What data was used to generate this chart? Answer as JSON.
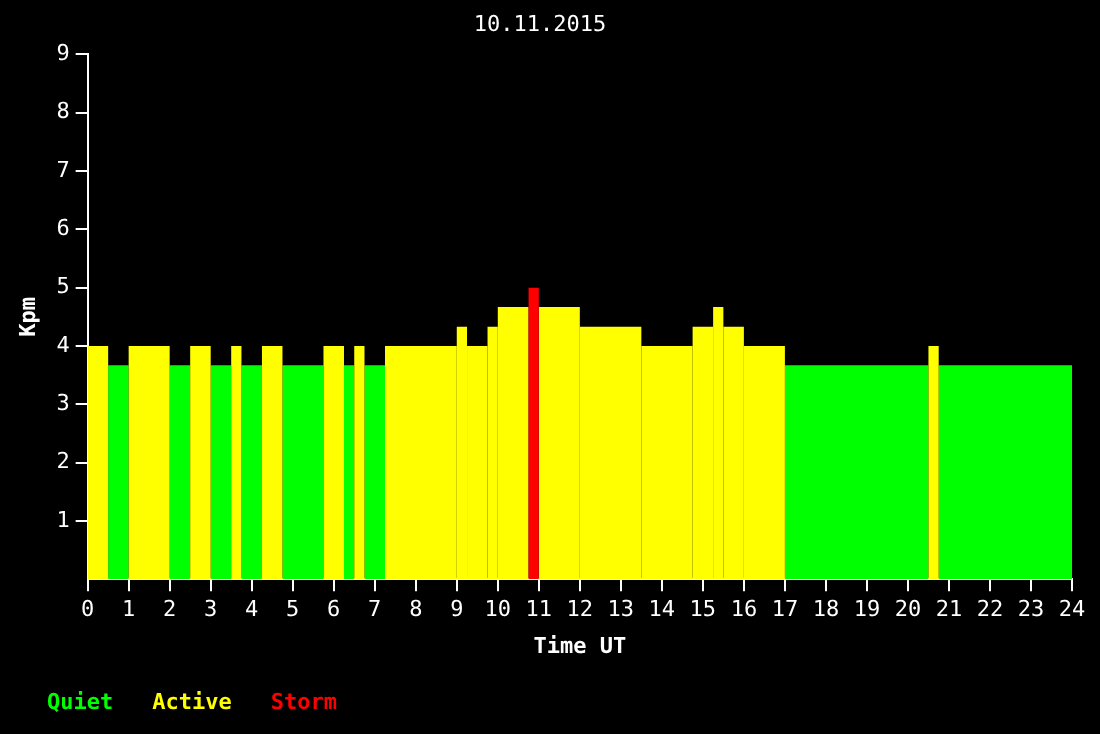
{
  "chart_data": {
    "type": "histogram",
    "title": "10.11.2015",
    "xlabel": "Time UT",
    "ylabel": "Kpm",
    "bins": [
      0,
      0.5,
      1,
      2,
      2.5,
      3,
      3.5,
      3.75,
      4.25,
      4.75,
      5.75,
      6.25,
      6.5,
      6.75,
      7.25,
      9,
      9.25,
      9.75,
      10,
      10.75,
      11,
      12,
      13.5,
      14.75,
      15.25,
      15.5,
      16,
      17,
      20.5,
      20.75,
      24
    ],
    "series": [
      {
        "name": "Quiet",
        "color": "#00ff00",
        "values": [
          null,
          3.67,
          null,
          3.67,
          null,
          3.67,
          null,
          3.67,
          null,
          3.67,
          null,
          3.67,
          null,
          3.67,
          null,
          null,
          null,
          null,
          null,
          null,
          null,
          null,
          null,
          null,
          null,
          null,
          null,
          3.67,
          null,
          3.67
        ]
      },
      {
        "name": "Active",
        "color": "#ffff00",
        "values": [
          4,
          null,
          4,
          null,
          4,
          null,
          4,
          null,
          4,
          null,
          4,
          null,
          4,
          null,
          4,
          4.33,
          4,
          4.33,
          4.67,
          null,
          4.67,
          4.33,
          4,
          4.33,
          4.67,
          4.33,
          4,
          null,
          4,
          null
        ]
      },
      {
        "name": "Storm",
        "color": "#ff0000",
        "values": [
          null,
          null,
          null,
          null,
          null,
          null,
          null,
          null,
          null,
          null,
          null,
          null,
          null,
          null,
          null,
          null,
          null,
          null,
          null,
          5,
          null,
          null,
          null,
          null,
          null,
          null,
          null,
          null,
          null,
          null
        ]
      }
    ],
    "xlim": [
      0,
      24
    ],
    "xticks": [
      0,
      1,
      2,
      3,
      4,
      5,
      6,
      7,
      8,
      9,
      10,
      11,
      12,
      13,
      14,
      15,
      16,
      17,
      18,
      19,
      20,
      21,
      22,
      23,
      24
    ],
    "ylim": [
      0,
      9
    ],
    "yticks": [
      1,
      2,
      3,
      4,
      5,
      6,
      7,
      8,
      9
    ],
    "grid": false,
    "legend": "bottom left"
  }
}
